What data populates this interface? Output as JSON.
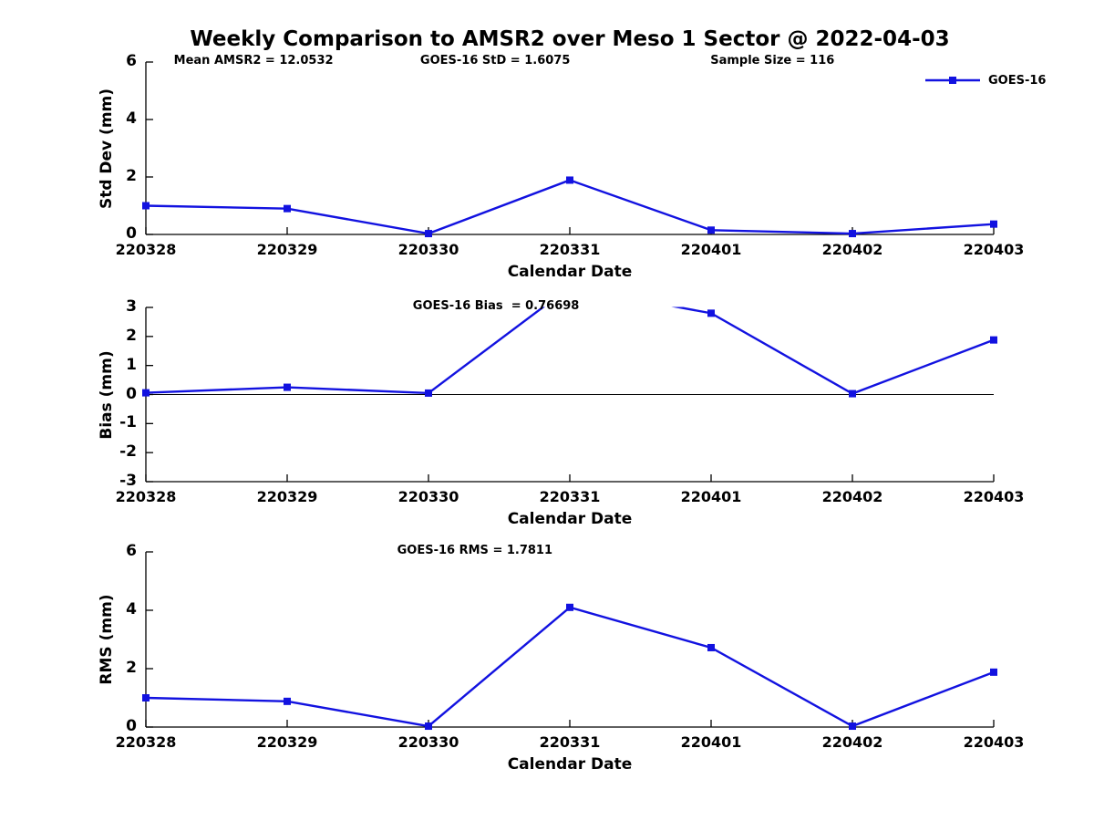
{
  "figure": {
    "title": "Weekly Comparison to AMSR2 over Meso 1 Sector @ 2022-04-03"
  },
  "legend": {
    "label": "GOES-16"
  },
  "colors": {
    "line": "#1212e0",
    "axis": "#000000",
    "text": "#000000"
  },
  "chart_data": [
    {
      "type": "line",
      "title": "",
      "ylabel": "Std Dev (mm)",
      "xlabel": "Calendar Date",
      "categories": [
        "220328",
        "220329",
        "220330",
        "220331",
        "220401",
        "220402",
        "220403"
      ],
      "series": [
        {
          "name": "GOES-16",
          "values": [
            1.0,
            0.9,
            0.03,
            1.89,
            0.15,
            0.03,
            0.36
          ]
        }
      ],
      "ylim": [
        0,
        6
      ],
      "yticks": [
        0,
        2,
        4,
        6
      ],
      "grid": false,
      "legend_position": "top-right",
      "annotations": [
        {
          "text": "Mean AMSR2 = 12.0532"
        },
        {
          "text": "GOES-16 StD = 1.6075"
        },
        {
          "text": "Sample Size = 116"
        }
      ]
    },
    {
      "type": "line",
      "title": "",
      "ylabel": "Bias (mm)",
      "xlabel": "Calendar Date",
      "categories": [
        "220328",
        "220329",
        "220330",
        "220331",
        "220401",
        "220402",
        "220403"
      ],
      "series": [
        {
          "name": "GOES-16",
          "values": [
            0.06,
            0.25,
            0.05,
            3.7,
            2.8,
            0.03,
            1.88
          ]
        }
      ],
      "ylim": [
        -3,
        3
      ],
      "yticks": [
        3,
        2,
        1,
        0,
        -1,
        -2,
        -3
      ],
      "grid": false,
      "zero_line": true,
      "annotations": [
        {
          "text": "GOES-16 Bias  = 0.76698"
        }
      ]
    },
    {
      "type": "line",
      "title": "",
      "ylabel": "RMS (mm)",
      "xlabel": "Calendar Date",
      "categories": [
        "220328",
        "220329",
        "220330",
        "220331",
        "220401",
        "220402",
        "220403"
      ],
      "series": [
        {
          "name": "GOES-16",
          "values": [
            1.0,
            0.88,
            0.03,
            4.1,
            2.72,
            0.03,
            1.88
          ]
        }
      ],
      "ylim": [
        0,
        6
      ],
      "yticks": [
        0,
        2,
        4,
        6
      ],
      "grid": false,
      "annotations": [
        {
          "text": "GOES-16 RMS = 1.7811"
        }
      ]
    }
  ]
}
